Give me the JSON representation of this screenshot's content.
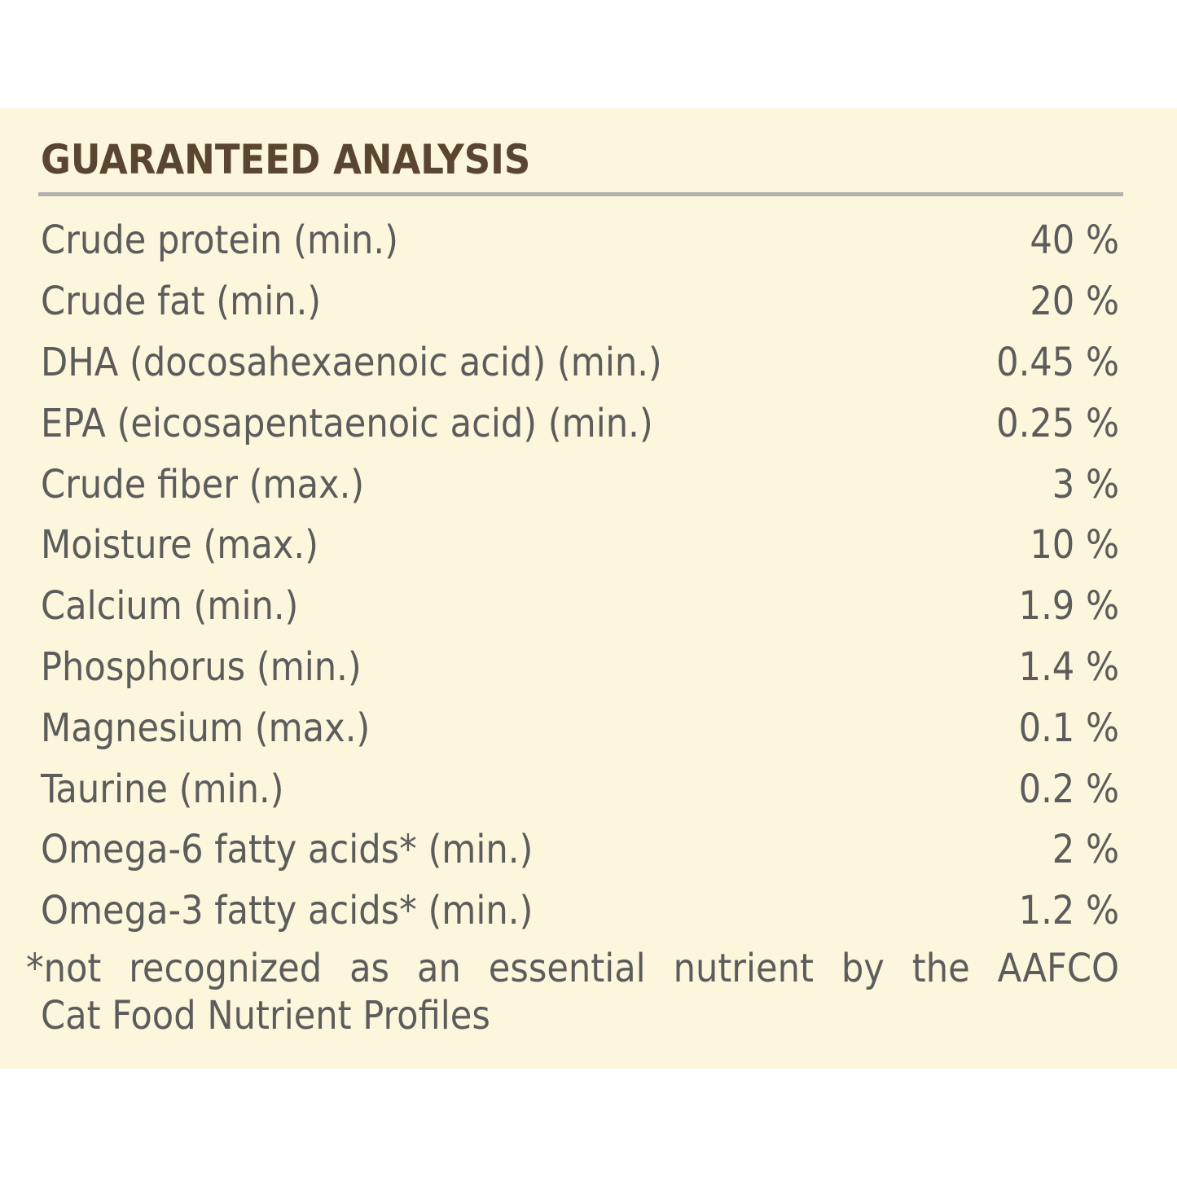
{
  "title": "GUARANTEED ANALYSIS",
  "rows": [
    {
      "name": "Crude protein (min.)",
      "value": "40 %"
    },
    {
      "name": "Crude fat (min.)",
      "value": "20 %"
    },
    {
      "name": "DHA (docosahexaenoic acid) (min.)",
      "value": "0.45 %"
    },
    {
      "name": "EPA (eicosapentaenoic acid) (min.)",
      "value": "0.25 %"
    },
    {
      "name": "Crude fiber (max.)",
      "value": "3 %"
    },
    {
      "name": "Moisture (max.)",
      "value": "10 %"
    },
    {
      "name": "Calcium (min.)",
      "value": "1.9 %"
    },
    {
      "name": "Phosphorus (min.)",
      "value": "1.4 %"
    },
    {
      "name": "Magnesium (max.)",
      "value": "0.1 %"
    },
    {
      "name": "Taurine (min.)",
      "value": "0.2 %"
    },
    {
      "name": "Omega-6 fatty acids* (min.)",
      "value": "2 %"
    },
    {
      "name": "Omega-3 fatty acids* (min.)",
      "value": "1.2 %"
    }
  ],
  "footnote": {
    "line1": "*not recognized as an essential nutrient by the AAFCO",
    "line2": "Cat Food Nutrient Profiles"
  },
  "colors": {
    "panel_background": "#fcf6dc",
    "title_text": "#5a4630",
    "body_text": "#5c5c5c",
    "rule": "#b2b2ae"
  }
}
